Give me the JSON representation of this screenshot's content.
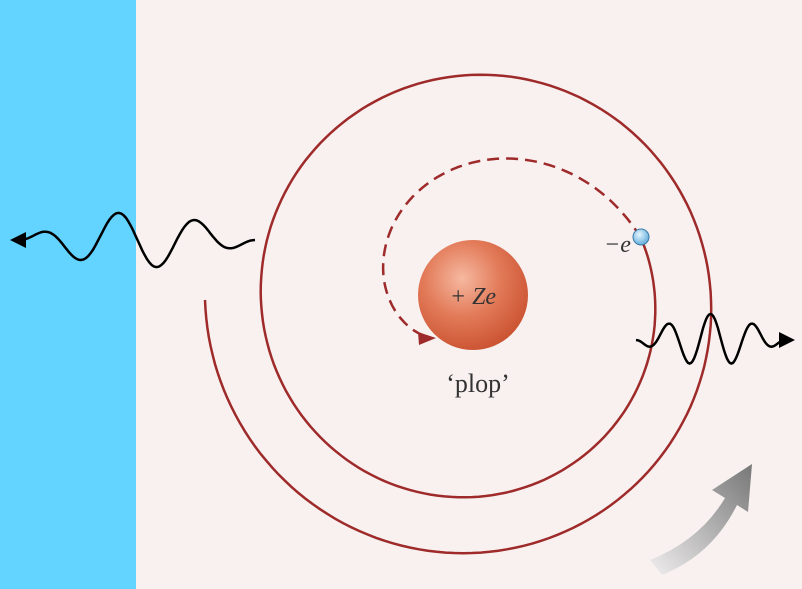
{
  "labels": {
    "nucleus": "+ Ze",
    "electron": "−e",
    "plop": "‘plop’"
  }
}
